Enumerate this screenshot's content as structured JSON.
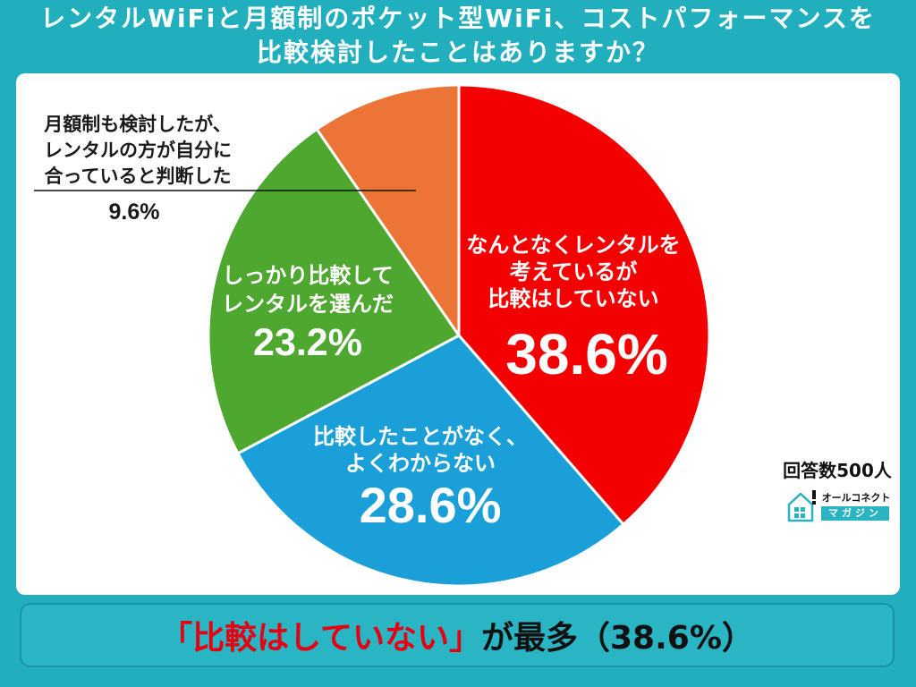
{
  "chart_data": {
    "type": "pie",
    "title_lines": [
      "レンタルWiFiと月額制のポケット型WiFi、コストパフォーマンスを",
      "比較検討したことはありますか？"
    ],
    "slices": [
      {
        "label_lines": [
          "なんとなくレンタルを",
          "考えているが",
          "比較はしていない"
        ],
        "value": 38.6,
        "value_label": "38.6%",
        "color": "#F50000"
      },
      {
        "label_lines": [
          "比較したことがなく、",
          "よくわからない"
        ],
        "value": 28.6,
        "value_label": "28.6%",
        "color": "#1A9FD9"
      },
      {
        "label_lines": [
          "しっかり比較して",
          "レンタルを選んだ"
        ],
        "value": 23.2,
        "value_label": "23.2%",
        "color": "#4EA72E"
      },
      {
        "label_lines": [
          "月額制も検討したが、",
          "レンタルの方が自分に",
          "合っていると判断した"
        ],
        "value": 9.6,
        "value_label": "9.6%",
        "color": "#EC7436"
      }
    ]
  },
  "respondents": "回答数500人",
  "logo": {
    "icon": "house-alert-icon",
    "name_top": "オールコネクト",
    "name_bottom": "マガジン",
    "accent": "#2AB3C2"
  },
  "summary": {
    "highlight": "「比較はしていない」",
    "rest": "が最多（38.6%）",
    "highlight_color": "#E60012"
  },
  "theme": {
    "frame": "#21AFBE",
    "panel": "#FFFFFF"
  }
}
